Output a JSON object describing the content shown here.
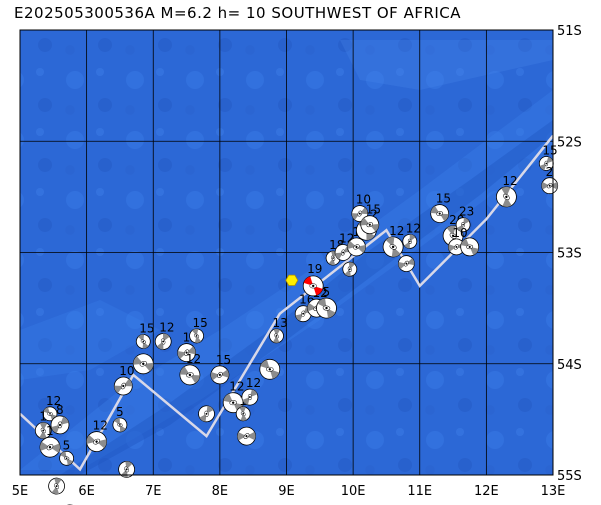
{
  "title": "E202505300536A M=6.2 h= 10 SOUTHWEST OF AFRICA",
  "map": {
    "lon_labels": [
      "5E",
      "6E",
      "7E",
      "8E",
      "9E",
      "10E",
      "11E",
      "12E",
      "13E"
    ],
    "lat_labels": [
      "51S",
      "52S",
      "53S",
      "54S",
      "55S"
    ],
    "lon_range": [
      5,
      13
    ],
    "lat_range": [
      -51,
      -55
    ],
    "ocean_color": "#2c68d6",
    "grid_color": "#000000",
    "ridge_color": "#d8d8e8",
    "main_event_color": "#ff0000",
    "epicenter_marker_color": "#ffee00",
    "ridge_path": [
      [
        5,
        -54.45
      ],
      [
        5.9,
        -54.95
      ],
      [
        6.7,
        -54.1
      ],
      [
        7.8,
        -54.65
      ],
      [
        8.9,
        -53.55
      ],
      [
        10.5,
        -52.8
      ],
      [
        11,
        -53.3
      ],
      [
        12,
        -52.7
      ],
      [
        13,
        -51.95
      ]
    ],
    "epicenter": {
      "lon": 9.08,
      "lat": -53.25
    },
    "main_event": {
      "lon": 9.4,
      "lat": -53.3,
      "label": "19"
    },
    "events": [
      {
        "lon": 5.45,
        "lat": -54.45,
        "label": "12"
      },
      {
        "lon": 5.35,
        "lat": -54.6,
        "label": "1"
      },
      {
        "lon": 5.6,
        "lat": -54.55,
        "label": "8"
      },
      {
        "lon": 5.45,
        "lat": -54.75,
        "label": "1"
      },
      {
        "lon": 5.7,
        "lat": -54.85,
        "label": "5"
      },
      {
        "lon": 5.55,
        "lat": -55.1,
        "label": ""
      },
      {
        "lon": 5.75,
        "lat": -55.35,
        "label": ""
      },
      {
        "lon": 6.15,
        "lat": -54.7,
        "label": "12"
      },
      {
        "lon": 6.5,
        "lat": -54.55,
        "label": "5"
      },
      {
        "lon": 6.6,
        "lat": -54.95,
        "label": ""
      },
      {
        "lon": 6.55,
        "lat": -54.2,
        "label": "10"
      },
      {
        "lon": 6.85,
        "lat": -54.0,
        "label": ""
      },
      {
        "lon": 6.85,
        "lat": -53.8,
        "label": "15"
      },
      {
        "lon": 7.15,
        "lat": -53.8,
        "label": "12"
      },
      {
        "lon": 7.5,
        "lat": -53.9,
        "label": "12"
      },
      {
        "lon": 7.55,
        "lat": -54.1,
        "label": "12"
      },
      {
        "lon": 7.65,
        "lat": -53.75,
        "label": "15"
      },
      {
        "lon": 7.8,
        "lat": -54.45,
        "label": ""
      },
      {
        "lon": 8.0,
        "lat": -54.1,
        "label": "15"
      },
      {
        "lon": 8.2,
        "lat": -54.35,
        "label": "12"
      },
      {
        "lon": 8.35,
        "lat": -54.45,
        "label": "15"
      },
      {
        "lon": 8.45,
        "lat": -54.3,
        "label": "12"
      },
      {
        "lon": 8.4,
        "lat": -54.65,
        "label": ""
      },
      {
        "lon": 8.75,
        "lat": -54.05,
        "label": ""
      },
      {
        "lon": 8.85,
        "lat": -53.75,
        "label": "13"
      },
      {
        "lon": 9.25,
        "lat": -53.55,
        "label": "16"
      },
      {
        "lon": 9.45,
        "lat": -53.5,
        "label": "12"
      },
      {
        "lon": 9.6,
        "lat": -53.5,
        "label": "5"
      },
      {
        "lon": 9.7,
        "lat": -53.05,
        "label": "18"
      },
      {
        "lon": 9.85,
        "lat": -53.0,
        "label": "12"
      },
      {
        "lon": 10.05,
        "lat": -52.95,
        "label": "11"
      },
      {
        "lon": 10.2,
        "lat": -52.8,
        "label": "12"
      },
      {
        "lon": 9.95,
        "lat": -53.15,
        "label": ""
      },
      {
        "lon": 10.1,
        "lat": -52.65,
        "label": "10"
      },
      {
        "lon": 10.25,
        "lat": -52.75,
        "label": "15"
      },
      {
        "lon": 10.6,
        "lat": -52.95,
        "label": "12"
      },
      {
        "lon": 10.85,
        "lat": -52.9,
        "label": "12"
      },
      {
        "lon": 10.8,
        "lat": -53.1,
        "label": ""
      },
      {
        "lon": 11.3,
        "lat": -52.65,
        "label": "15"
      },
      {
        "lon": 11.5,
        "lat": -52.85,
        "label": "20"
      },
      {
        "lon": 11.65,
        "lat": -52.75,
        "label": "23"
      },
      {
        "lon": 11.55,
        "lat": -52.95,
        "label": "10"
      },
      {
        "lon": 11.75,
        "lat": -52.95,
        "label": ""
      },
      {
        "lon": 12.3,
        "lat": -52.5,
        "label": "12"
      },
      {
        "lon": 12.9,
        "lat": -52.2,
        "label": "15"
      },
      {
        "lon": 12.95,
        "lat": -52.4,
        "label": "2"
      }
    ]
  }
}
